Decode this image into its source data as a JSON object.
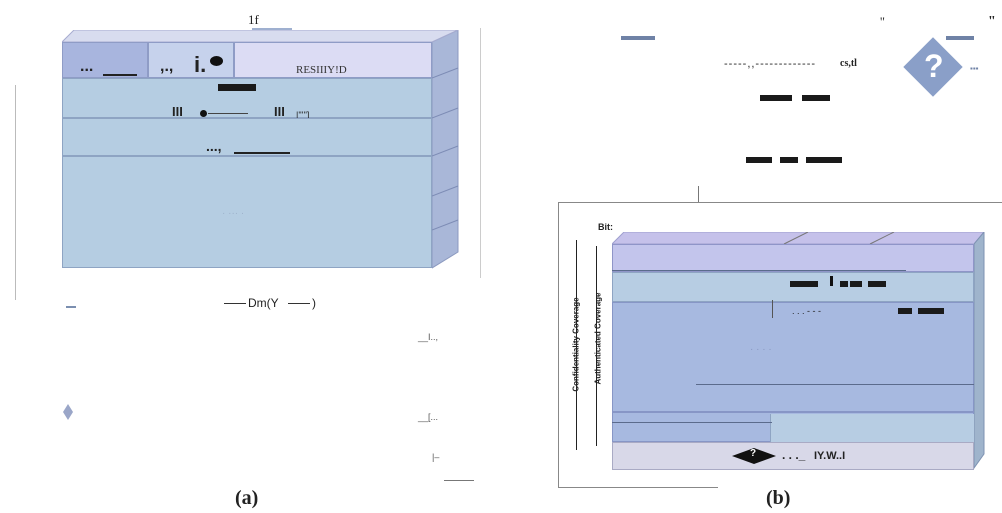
{
  "panel_a": {
    "top_label": "1f",
    "header_text": "RESIIIY!D",
    "row2_tail": "|''''']",
    "bottom_label": "Dm(Y",
    "bottom_label_close": ")",
    "side_text_1": "__I..,",
    "side_text_2": "__[...",
    "side_text_3": "|–",
    "caption": "(a)"
  },
  "panel_b": {
    "quote_1": "''",
    "quote_2": "\"",
    "dotted_text": "cs,tl",
    "diamond_glyph": "?",
    "diamond_dots": "▪▪▪",
    "bit_label": "Bit:",
    "confidentiality_label": "Confidentiality Coverage",
    "authenticated_label": "Authenticated Coverage",
    "footer_text": "IY.W..I",
    "footer_glyph": "?",
    "caption": "(b)"
  },
  "colors": {
    "box_blue": "#b7cde3",
    "box_purple": "#c9c6ea",
    "box_dark_blue": "#a6b7e0",
    "box_light": "#dcdcf4"
  }
}
